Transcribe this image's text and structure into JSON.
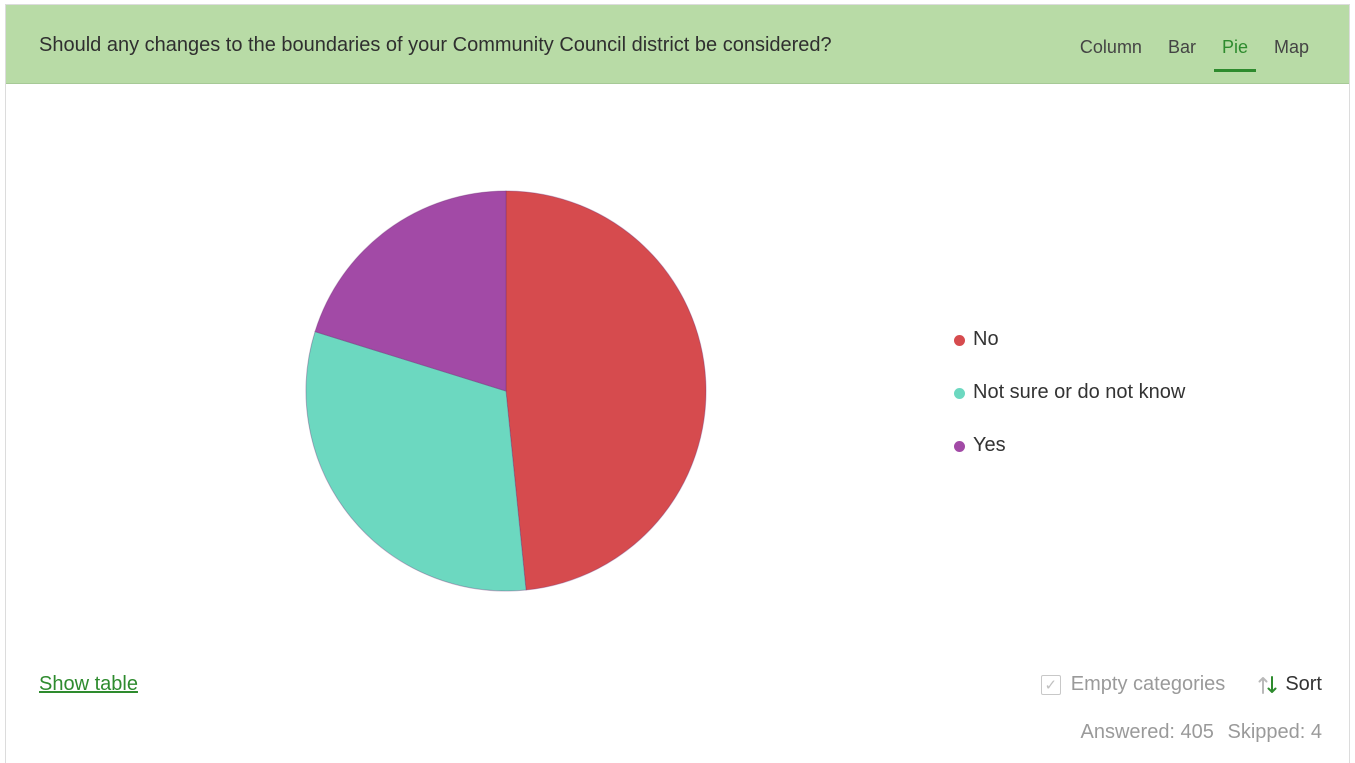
{
  "header": {
    "question": "Should any changes to the boundaries of your Community Council district be considered?",
    "tabs": [
      {
        "label": "Column",
        "active": false
      },
      {
        "label": "Bar",
        "active": false
      },
      {
        "label": "Pie",
        "active": true
      },
      {
        "label": "Map",
        "active": false
      }
    ]
  },
  "chart_data": {
    "type": "pie",
    "categories": [
      "No",
      "Not sure or do not know",
      "Yes"
    ],
    "values": [
      48.4,
      31.4,
      20.2
    ],
    "colors": [
      "#d64b4e",
      "#6cd8c0",
      "#a24aa6"
    ],
    "legend_position": "right"
  },
  "footer": {
    "show_table_label": "Show table",
    "empty_categories_label": "Empty categories",
    "empty_categories_checked": true,
    "sort_label": "Sort",
    "answered_label": "Answered: 405",
    "skipped_label": "Skipped: 4"
  }
}
